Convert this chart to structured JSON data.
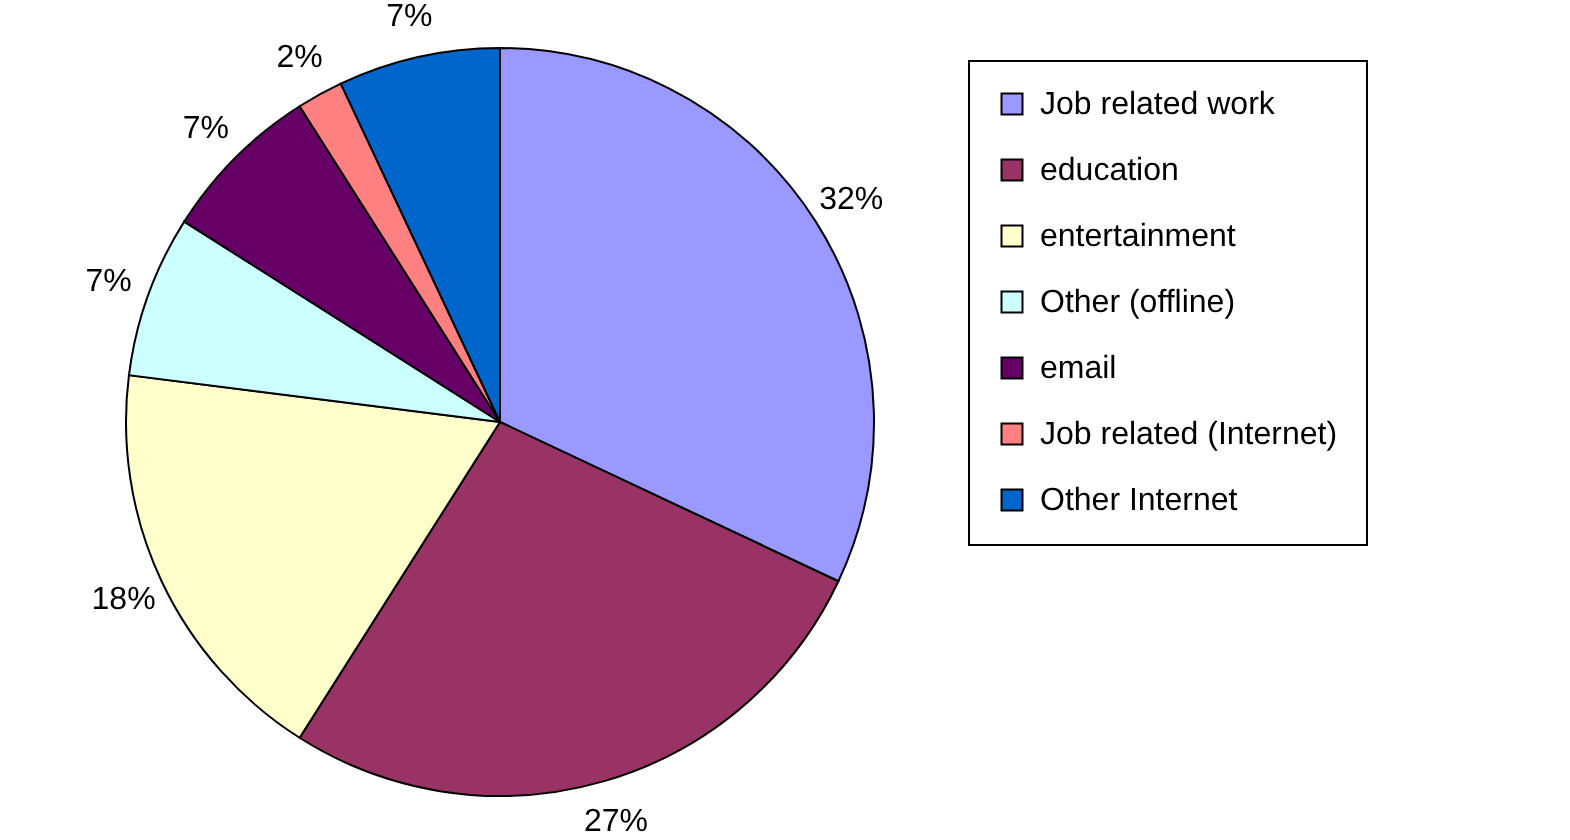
{
  "chart_data": {
    "type": "pie",
    "categories": [
      "Job related work",
      "education",
      "entertainment",
      "Other (offline)",
      "email",
      "Job related (Internet)",
      "Other Internet"
    ],
    "values": [
      32,
      27,
      18,
      7,
      7,
      2,
      7
    ],
    "value_labels": [
      "32%",
      "27%",
      "18%",
      "7%",
      "7%",
      "2%",
      "7%"
    ],
    "colors": [
      "#9999ff",
      "#993366",
      "#ffffcc",
      "#ccffff",
      "#660066",
      "#ff8080",
      "#0066cc"
    ],
    "legend": "right"
  }
}
